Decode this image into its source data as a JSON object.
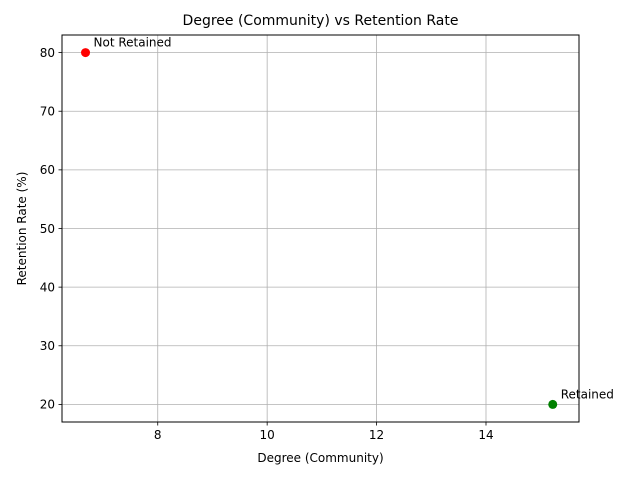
{
  "chart_data": {
    "type": "scatter",
    "title": "Degree (Community) vs Retention Rate",
    "xlabel": "Degree (Community)",
    "ylabel": "Retention Rate (%)",
    "xlim": [
      6.25,
      15.7
    ],
    "ylim": [
      17,
      83
    ],
    "xticks": [
      8,
      10,
      12,
      14
    ],
    "yticks": [
      20,
      30,
      40,
      50,
      60,
      70,
      80
    ],
    "grid": true,
    "points": [
      {
        "label": "Not Retained",
        "x": 6.68,
        "y": 80,
        "color": "#ff0000"
      },
      {
        "label": "Retained",
        "x": 15.22,
        "y": 20,
        "color": "#008000"
      }
    ]
  }
}
